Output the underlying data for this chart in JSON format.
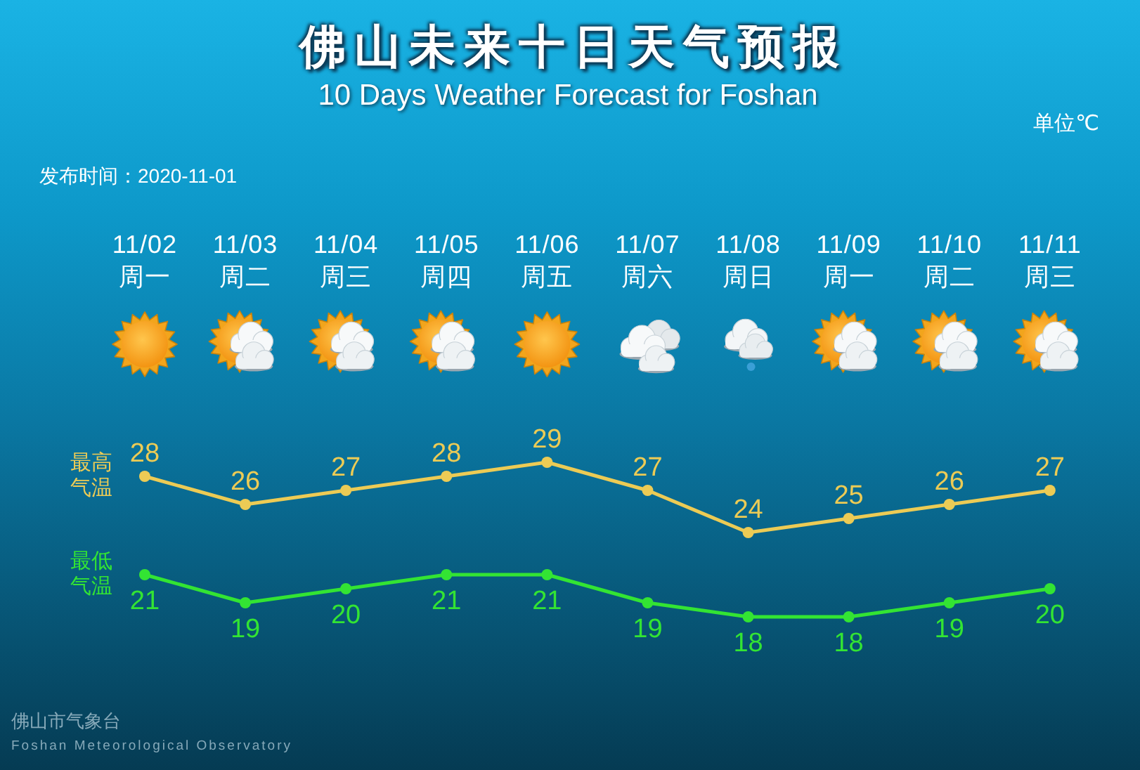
{
  "chart_data": {
    "type": "line",
    "title": "佛山未来十日天气预报",
    "subtitle": "10 Days Weather Forecast for Foshan",
    "categories": [
      "11/02 周一",
      "11/03 周二",
      "11/04 周三",
      "11/05 周四",
      "11/06 周五",
      "11/07 周六",
      "11/08 周日",
      "11/09 周一",
      "11/10 周二",
      "11/11 周三"
    ],
    "series": [
      {
        "name": "最高气温",
        "color": "#eccb55",
        "values": [
          28,
          26,
          27,
          28,
          29,
          27,
          24,
          25,
          26,
          27
        ]
      },
      {
        "name": "最低气温",
        "color": "#33e433",
        "values": [
          21,
          19,
          20,
          21,
          21,
          19,
          18,
          18,
          19,
          20
        ]
      }
    ],
    "data_labels": true,
    "marker": "circle",
    "tick_labels": "x",
    "annotations": [
      "单位℃",
      "发布时间：2020-11-01",
      "佛山市气象台",
      "Foshan Meteorological Observatory"
    ]
  }
}
